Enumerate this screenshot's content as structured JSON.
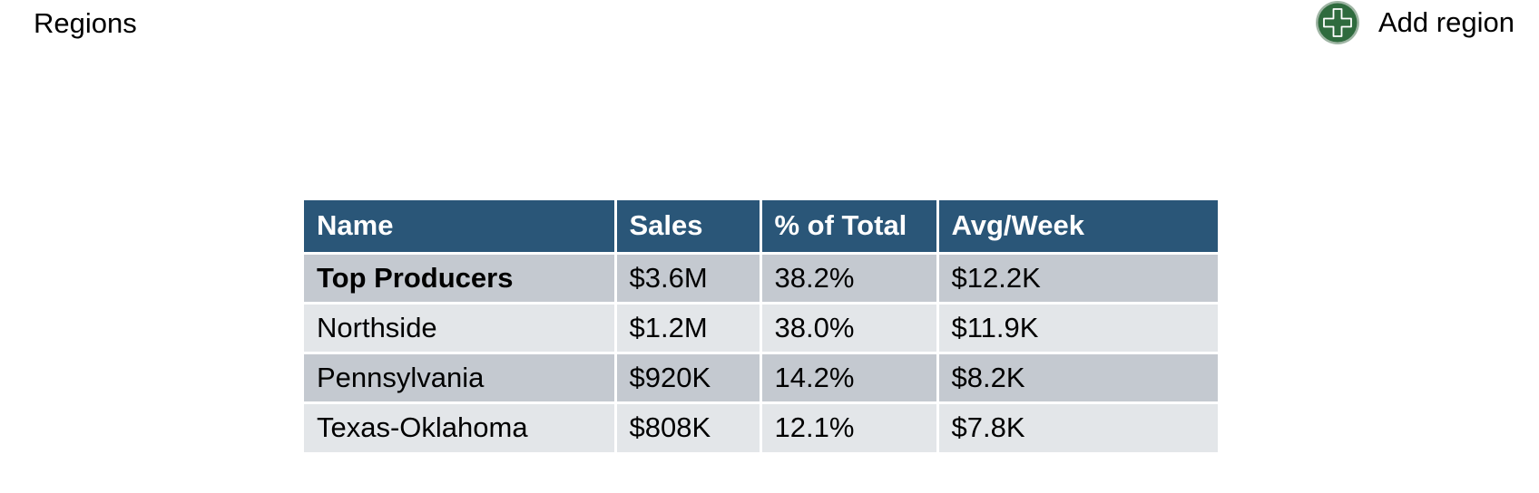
{
  "header": {
    "title": "Regions",
    "add_button": {
      "label": "Add region",
      "icon": "plus-circle-icon"
    }
  },
  "table": {
    "columns": [
      "Name",
      "Sales",
      "% of Total",
      "Avg/Week"
    ],
    "rows": [
      {
        "name": "Top Producers",
        "sales": "$3.6M",
        "pct_of_total": "38.2%",
        "avg_week": "$12.2K",
        "bold": true
      },
      {
        "name": "Northside",
        "sales": "$1.2M",
        "pct_of_total": "38.0%",
        "avg_week": "$11.9K",
        "bold": false
      },
      {
        "name": "Pennsylvania",
        "sales": "$920K",
        "pct_of_total": "14.2%",
        "avg_week": "$8.2K",
        "bold": false
      },
      {
        "name": "Texas-Oklahoma",
        "sales": "$808K",
        "pct_of_total": "12.1%",
        "avg_week": "$7.8K",
        "bold": false
      }
    ]
  },
  "colors": {
    "header_bg": "#2a5678",
    "row_dark": "#c4c9d0",
    "row_light": "#e3e6e9",
    "icon_fill": "#2f6b3e",
    "icon_ring": "#9fb5a4"
  }
}
